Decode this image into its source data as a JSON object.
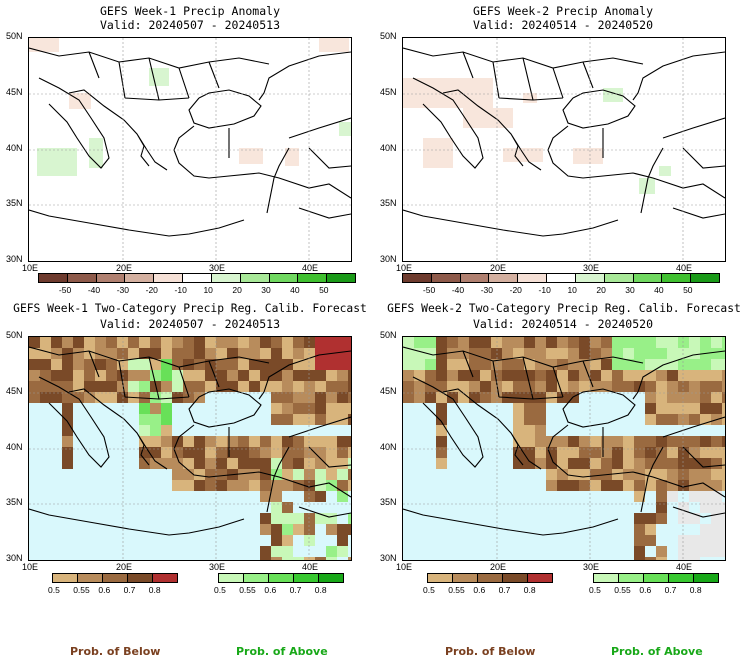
{
  "panels": [
    {
      "title": "GEFS Week-1 Precip Anomaly",
      "valid": "Valid: 20240507 - 20240513"
    },
    {
      "title": "GEFS Week-2 Precip Anomaly",
      "valid": "Valid: 20240514 - 20240520"
    },
    {
      "title": "GEFS Week-1 Two-Category Precip Reg. Calib. Forecast",
      "valid": "Valid: 20240507 - 20240513"
    },
    {
      "title": "GEFS Week-2 Two-Category Precip Reg. Calib. Forecast",
      "valid": "Valid: 20240514 - 20240520"
    }
  ],
  "axes": {
    "lat_labels": [
      "50N",
      "45N",
      "40N",
      "35N",
      "30N"
    ],
    "lon_labels": [
      "10E",
      "20E",
      "30E",
      "40E"
    ]
  },
  "anomaly_colorbar": {
    "labels": [
      "-50",
      "-40",
      "-30",
      "-20",
      "-10",
      "10",
      "20",
      "30",
      "40",
      "50"
    ],
    "colors": [
      "#6e3b2e",
      "#8e5a4a",
      "#b08070",
      "#d4b0a0",
      "#f5e0d6",
      "#ffffff",
      "#d8f5d0",
      "#a8e898",
      "#70d860",
      "#40c030",
      "#1a9a18"
    ]
  },
  "prob_below_colorbar": {
    "labels": [
      "0.5",
      "0.55",
      "0.6",
      "0.7",
      "0.8"
    ],
    "colors": [
      "#d8b47c",
      "#b88c5c",
      "#9a6a40",
      "#7a4a28",
      "#b03030"
    ]
  },
  "prob_above_colorbar": {
    "labels": [
      "0.5",
      "0.55",
      "0.6",
      "0.7",
      "0.8"
    ],
    "colors": [
      "#c8f8b8",
      "#98f088",
      "#68e058",
      "#38c830",
      "#18a818"
    ]
  },
  "colors": {
    "sea": "#d9f8fc",
    "no_data": "#e8e8e8",
    "below_text": "#7a4020",
    "above_text": "#18a818"
  },
  "footer": {
    "below": "Prob. of Below",
    "above": "Prob. of Above"
  }
}
